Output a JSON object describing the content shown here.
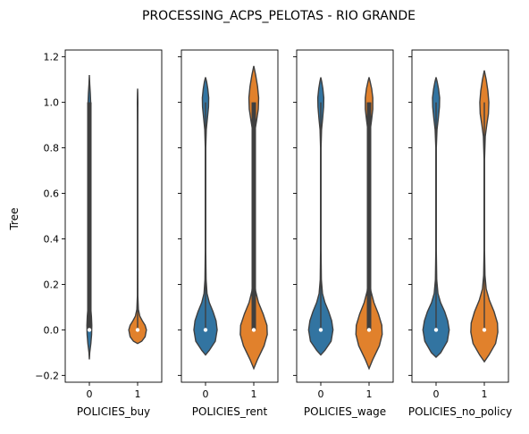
{
  "chart_data": {
    "type": "violin",
    "title": "PROCESSING_ACPS_PELOTAS - RIO GRANDE",
    "ylabel": "Tree",
    "ylim": [
      -0.23,
      1.23
    ],
    "yticks": [
      -0.2,
      0.0,
      0.2,
      0.4,
      0.6,
      0.8,
      1.0,
      1.2
    ],
    "ytick_labels": [
      "−0.2",
      "0.0",
      "0.2",
      "0.4",
      "0.6",
      "0.8",
      "1.0",
      "1.2"
    ],
    "categories": [
      "0",
      "1"
    ],
    "colors": {
      "0": "#3274a1",
      "1": "#e1812c"
    },
    "panels": [
      {
        "xlabel": "POLICIES_buy",
        "violins": [
          {
            "category": "0",
            "min": -0.13,
            "max": 1.12,
            "median": 0.0,
            "q1": 0.0,
            "q3": 0.0,
            "iqr_full": true,
            "profile": [
              [
                -0.13,
                0
              ],
              [
                -0.1,
                0.02
              ],
              [
                -0.06,
                0.08
              ],
              [
                -0.02,
                0.12
              ],
              [
                0.02,
                0.13
              ],
              [
                0.06,
                0.11
              ],
              [
                0.1,
                0.07
              ],
              [
                0.14,
                0.04
              ],
              [
                0.2,
                0.02
              ],
              [
                0.3,
                0.012
              ],
              [
                0.5,
                0.01
              ],
              [
                0.8,
                0.012
              ],
              [
                0.92,
                0.02
              ],
              [
                0.97,
                0.05
              ],
              [
                1.0,
                0.07
              ],
              [
                1.04,
                0.05
              ],
              [
                1.08,
                0.02
              ],
              [
                1.12,
                0
              ]
            ]
          },
          {
            "category": "1",
            "min": -0.06,
            "max": 1.06,
            "median": 0.0,
            "q1": 0.0,
            "q3": 0.0,
            "profile": [
              [
                -0.06,
                0
              ],
              [
                -0.05,
                0.22
              ],
              [
                -0.03,
                0.4
              ],
              [
                0.0,
                0.47
              ],
              [
                0.02,
                0.4
              ],
              [
                0.04,
                0.25
              ],
              [
                0.06,
                0.12
              ],
              [
                0.09,
                0.04
              ],
              [
                0.15,
                0.012
              ],
              [
                0.3,
                0.008
              ],
              [
                0.9,
                0.008
              ],
              [
                0.97,
                0.012
              ],
              [
                1.0,
                0.015
              ],
              [
                1.04,
                0.008
              ],
              [
                1.06,
                0
              ]
            ]
          }
        ]
      },
      {
        "xlabel": "POLICIES_rent",
        "violins": [
          {
            "category": "0",
            "min": -0.11,
            "max": 1.11,
            "median": 0.0,
            "q1": 0.0,
            "q3": 0.0,
            "profile": [
              [
                -0.11,
                0
              ],
              [
                -0.09,
                0.2
              ],
              [
                -0.05,
                0.52
              ],
              [
                0.0,
                0.62
              ],
              [
                0.04,
                0.56
              ],
              [
                0.08,
                0.4
              ],
              [
                0.12,
                0.2
              ],
              [
                0.16,
                0.08
              ],
              [
                0.22,
                0.03
              ],
              [
                0.35,
                0.012
              ],
              [
                0.8,
                0.012
              ],
              [
                0.88,
                0.04
              ],
              [
                0.93,
                0.1
              ],
              [
                0.98,
                0.16
              ],
              [
                1.02,
                0.17
              ],
              [
                1.06,
                0.12
              ],
              [
                1.09,
                0.06
              ],
              [
                1.11,
                0
              ]
            ]
          },
          {
            "category": "1",
            "min": -0.17,
            "max": 1.16,
            "median": 0.0,
            "q1": 0.0,
            "q3": 1.0,
            "profile": [
              [
                -0.17,
                0
              ],
              [
                -0.13,
                0.2
              ],
              [
                -0.07,
                0.55
              ],
              [
                -0.02,
                0.72
              ],
              [
                0.02,
                0.7
              ],
              [
                0.07,
                0.5
              ],
              [
                0.12,
                0.25
              ],
              [
                0.17,
                0.1
              ],
              [
                0.22,
                0.04
              ],
              [
                0.35,
                0.015
              ],
              [
                0.8,
                0.015
              ],
              [
                0.87,
                0.05
              ],
              [
                0.92,
                0.15
              ],
              [
                0.97,
                0.24
              ],
              [
                1.02,
                0.26
              ],
              [
                1.07,
                0.2
              ],
              [
                1.12,
                0.1
              ],
              [
                1.16,
                0
              ]
            ]
          }
        ]
      },
      {
        "xlabel": "POLICIES_wage",
        "violins": [
          {
            "category": "0",
            "min": -0.11,
            "max": 1.11,
            "median": 0.0,
            "q1": 0.0,
            "q3": 0.0,
            "profile": [
              [
                -0.11,
                0
              ],
              [
                -0.09,
                0.22
              ],
              [
                -0.05,
                0.55
              ],
              [
                0.0,
                0.65
              ],
              [
                0.04,
                0.58
              ],
              [
                0.08,
                0.42
              ],
              [
                0.12,
                0.22
              ],
              [
                0.16,
                0.09
              ],
              [
                0.22,
                0.03
              ],
              [
                0.35,
                0.012
              ],
              [
                0.8,
                0.012
              ],
              [
                0.88,
                0.04
              ],
              [
                0.93,
                0.1
              ],
              [
                0.98,
                0.15
              ],
              [
                1.02,
                0.16
              ],
              [
                1.06,
                0.11
              ],
              [
                1.09,
                0.05
              ],
              [
                1.11,
                0
              ]
            ]
          },
          {
            "category": "1",
            "min": -0.17,
            "max": 1.11,
            "median": 0.0,
            "q1": 0.0,
            "q3": 1.0,
            "profile": [
              [
                -0.17,
                0
              ],
              [
                -0.13,
                0.2
              ],
              [
                -0.07,
                0.55
              ],
              [
                -0.02,
                0.7
              ],
              [
                0.02,
                0.68
              ],
              [
                0.07,
                0.5
              ],
              [
                0.12,
                0.26
              ],
              [
                0.17,
                0.1
              ],
              [
                0.22,
                0.04
              ],
              [
                0.35,
                0.015
              ],
              [
                0.8,
                0.015
              ],
              [
                0.87,
                0.05
              ],
              [
                0.92,
                0.13
              ],
              [
                0.97,
                0.2
              ],
              [
                1.02,
                0.2
              ],
              [
                1.06,
                0.14
              ],
              [
                1.09,
                0.06
              ],
              [
                1.11,
                0
              ]
            ]
          }
        ]
      },
      {
        "xlabel": "POLICIES_no_policy",
        "violins": [
          {
            "category": "0",
            "min": -0.12,
            "max": 1.11,
            "median": 0.0,
            "q1": 0.0,
            "q3": 0.0,
            "profile": [
              [
                -0.12,
                0
              ],
              [
                -0.1,
                0.25
              ],
              [
                -0.05,
                0.6
              ],
              [
                0.0,
                0.7
              ],
              [
                0.04,
                0.62
              ],
              [
                0.08,
                0.46
              ],
              [
                0.12,
                0.24
              ],
              [
                0.16,
                0.1
              ],
              [
                0.22,
                0.035
              ],
              [
                0.35,
                0.012
              ],
              [
                0.8,
                0.012
              ],
              [
                0.88,
                0.05
              ],
              [
                0.93,
                0.12
              ],
              [
                0.98,
                0.18
              ],
              [
                1.02,
                0.19
              ],
              [
                1.06,
                0.13
              ],
              [
                1.09,
                0.06
              ],
              [
                1.11,
                0
              ]
            ]
          },
          {
            "category": "1",
            "min": -0.14,
            "max": 1.14,
            "median": 0.0,
            "q1": 0.0,
            "q3": 0.0,
            "profile": [
              [
                -0.14,
                0
              ],
              [
                -0.11,
                0.25
              ],
              [
                -0.06,
                0.6
              ],
              [
                -0.01,
                0.72
              ],
              [
                0.03,
                0.7
              ],
              [
                0.08,
                0.52
              ],
              [
                0.13,
                0.27
              ],
              [
                0.18,
                0.1
              ],
              [
                0.24,
                0.035
              ],
              [
                0.35,
                0.012
              ],
              [
                0.75,
                0.012
              ],
              [
                0.85,
                0.05
              ],
              [
                0.9,
                0.13
              ],
              [
                0.95,
                0.22
              ],
              [
                1.0,
                0.24
              ],
              [
                1.05,
                0.19
              ],
              [
                1.1,
                0.1
              ],
              [
                1.14,
                0
              ]
            ]
          }
        ]
      }
    ]
  }
}
